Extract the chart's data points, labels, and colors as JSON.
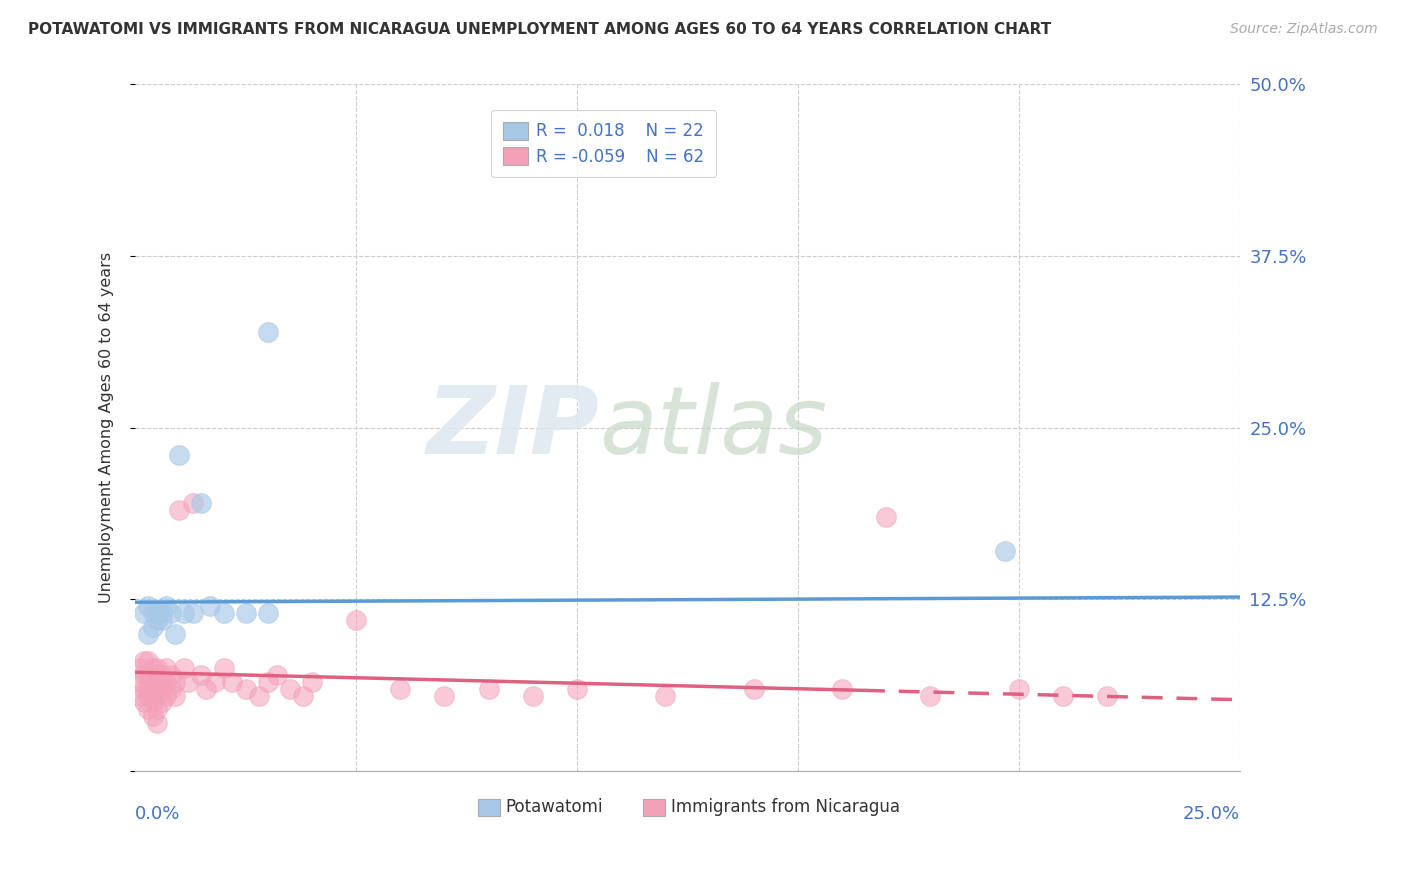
{
  "title": "POTAWATOMI VS IMMIGRANTS FROM NICARAGUA UNEMPLOYMENT AMONG AGES 60 TO 64 YEARS CORRELATION CHART",
  "source": "Source: ZipAtlas.com",
  "ylabel": "Unemployment Among Ages 60 to 64 years",
  "color_blue": "#a8c8e8",
  "color_blue_line": "#5b9bd5",
  "color_pink": "#f4a0b8",
  "color_pink_line": "#e06080",
  "watermark_zip": "ZIP",
  "watermark_atlas": "atlas",
  "xlim": [
    0.0,
    0.25
  ],
  "ylim": [
    0.0,
    0.5
  ],
  "ytick_values": [
    0.0,
    0.125,
    0.25,
    0.375,
    0.5
  ],
  "ytick_labels": [
    "",
    "12.5%",
    "25.0%",
    "37.5%",
    "50.0%"
  ],
  "potawatomi_x": [
    0.002,
    0.003,
    0.003,
    0.004,
    0.004,
    0.005,
    0.005,
    0.006,
    0.006,
    0.007,
    0.008,
    0.009,
    0.01,
    0.011,
    0.013,
    0.015,
    0.017,
    0.02,
    0.025,
    0.03,
    0.03,
    0.197
  ],
  "potawatomi_y": [
    0.115,
    0.12,
    0.1,
    0.115,
    0.105,
    0.11,
    0.115,
    0.115,
    0.11,
    0.12,
    0.115,
    0.1,
    0.23,
    0.115,
    0.115,
    0.195,
    0.12,
    0.115,
    0.115,
    0.115,
    0.32,
    0.16
  ],
  "nicaragua_x": [
    0.001,
    0.001,
    0.001,
    0.002,
    0.002,
    0.002,
    0.002,
    0.003,
    0.003,
    0.003,
    0.003,
    0.003,
    0.004,
    0.004,
    0.004,
    0.004,
    0.004,
    0.005,
    0.005,
    0.005,
    0.005,
    0.005,
    0.006,
    0.006,
    0.006,
    0.007,
    0.007,
    0.007,
    0.008,
    0.008,
    0.009,
    0.009,
    0.01,
    0.011,
    0.012,
    0.013,
    0.015,
    0.016,
    0.018,
    0.02,
    0.022,
    0.025,
    0.028,
    0.03,
    0.032,
    0.035,
    0.038,
    0.04,
    0.05,
    0.06,
    0.07,
    0.08,
    0.09,
    0.1,
    0.12,
    0.14,
    0.16,
    0.17,
    0.18,
    0.2,
    0.21,
    0.22
  ],
  "nicaragua_y": [
    0.075,
    0.065,
    0.055,
    0.08,
    0.07,
    0.06,
    0.05,
    0.08,
    0.07,
    0.06,
    0.055,
    0.045,
    0.075,
    0.065,
    0.055,
    0.05,
    0.04,
    0.075,
    0.065,
    0.055,
    0.045,
    0.035,
    0.07,
    0.06,
    0.05,
    0.075,
    0.065,
    0.055,
    0.07,
    0.06,
    0.065,
    0.055,
    0.19,
    0.075,
    0.065,
    0.195,
    0.07,
    0.06,
    0.065,
    0.075,
    0.065,
    0.06,
    0.055,
    0.065,
    0.07,
    0.06,
    0.055,
    0.065,
    0.11,
    0.06,
    0.055,
    0.06,
    0.055,
    0.06,
    0.055,
    0.06,
    0.06,
    0.185,
    0.055,
    0.06,
    0.055,
    0.055
  ]
}
